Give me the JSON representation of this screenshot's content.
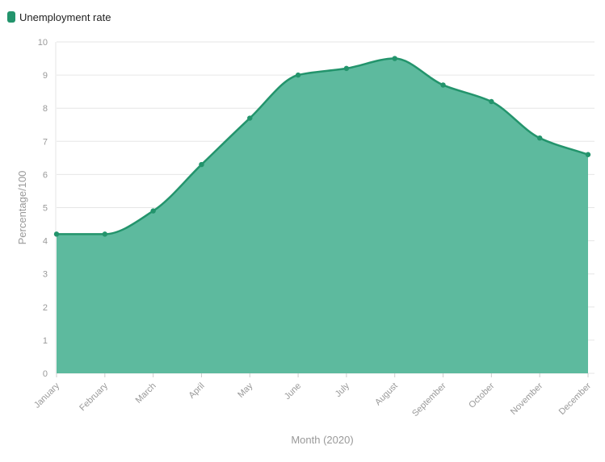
{
  "chart_data": {
    "type": "area",
    "title": "",
    "xlabel": "Month (2020)",
    "ylabel": "Percentage/100",
    "ylim": [
      0,
      10
    ],
    "yticks": [
      0,
      1,
      2,
      3,
      4,
      5,
      6,
      7,
      8,
      9,
      10
    ],
    "categories": [
      "January",
      "February",
      "March",
      "April",
      "May",
      "June",
      "July",
      "August",
      "September",
      "October",
      "November",
      "December"
    ],
    "series": [
      {
        "name": "Unemployment rate",
        "values": [
          4.2,
          4.2,
          4.9,
          6.3,
          7.7,
          9.0,
          9.2,
          9.5,
          8.7,
          8.2,
          7.1,
          6.6
        ]
      }
    ],
    "grid": true,
    "legend_position": "top-left",
    "colors": {
      "line": "#23946c",
      "fill": "#5ab99c",
      "grid": "#e6e6e6",
      "text": "#999999"
    }
  }
}
